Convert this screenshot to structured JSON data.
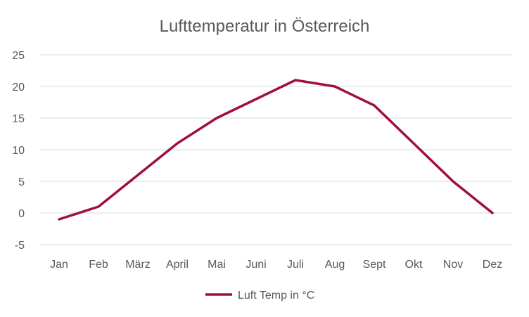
{
  "chart_data": {
    "type": "line",
    "title": "Lufttemperatur in Österreich",
    "xlabel": "",
    "ylabel": "",
    "categories": [
      "Jan",
      "Feb",
      "März",
      "April",
      "Mai",
      "Juni",
      "Juli",
      "Aug",
      "Sept",
      "Okt",
      "Nov",
      "Dez"
    ],
    "series": [
      {
        "name": "Luft Temp in °C",
        "values": [
          -1,
          1,
          6,
          11,
          15,
          18,
          21,
          20,
          17,
          11,
          5,
          0
        ],
        "color": "#A0103C"
      }
    ],
    "ylim": [
      -5,
      25
    ],
    "yticks": [
      "-5",
      "0",
      "5",
      "10",
      "15",
      "20",
      "25"
    ],
    "grid": true,
    "legend": "bottom"
  }
}
